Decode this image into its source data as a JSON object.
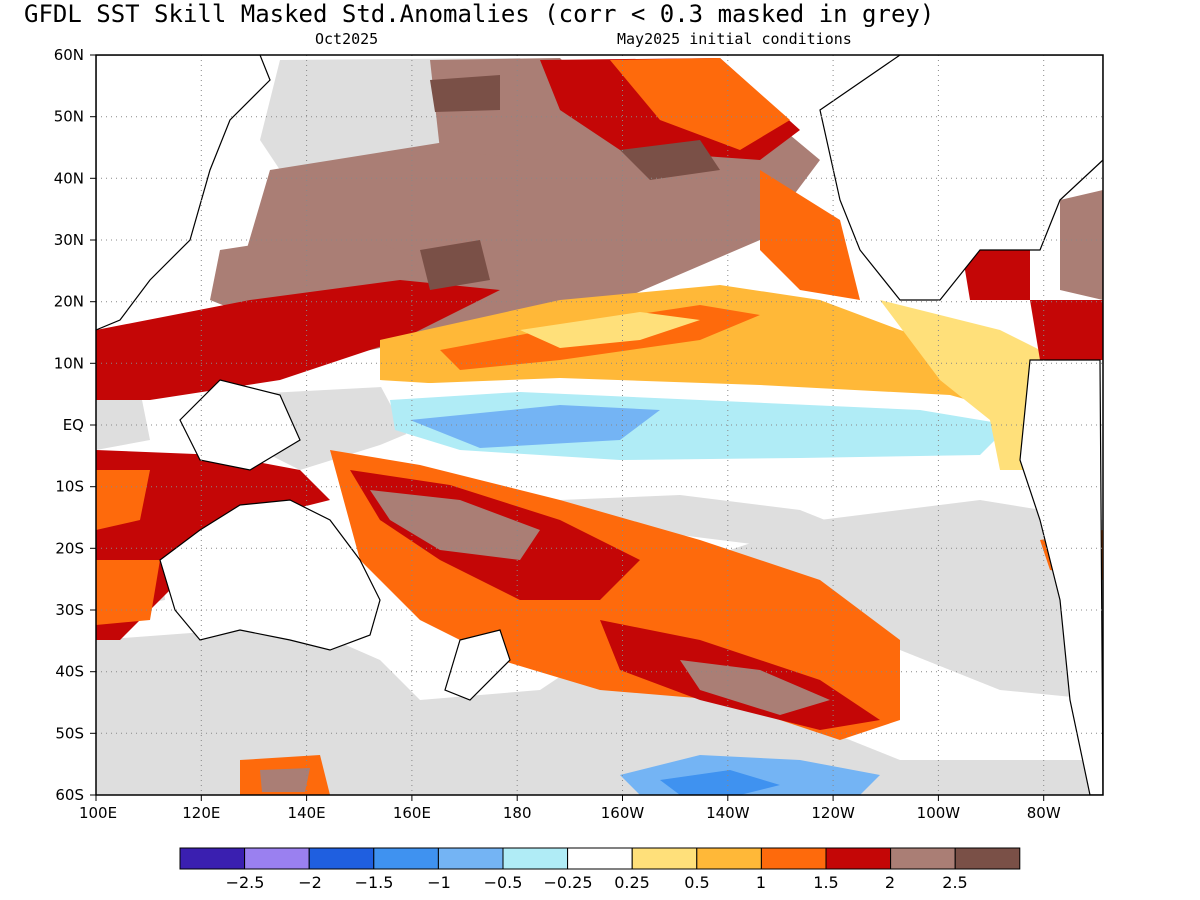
{
  "header": {
    "title": "GFDL   SST Skill Masked Std.Anomalies (corr < 0.3 masked in grey)",
    "valid_month": "Oct2025",
    "init_label": "May2025 initial conditions"
  },
  "axes": {
    "lat_labels": [
      "60N",
      "50N",
      "40N",
      "30N",
      "20N",
      "10N",
      "EQ",
      "10S",
      "20S",
      "30S",
      "40S",
      "50S",
      "60S"
    ],
    "lon_labels": [
      "100E",
      "120E",
      "140E",
      "160E",
      "180",
      "160W",
      "140W",
      "120W",
      "100W",
      "80W"
    ]
  },
  "colorbar": {
    "colors": [
      "#3a1fb0",
      "#9a80f0",
      "#1f5fe0",
      "#3f92f0",
      "#74b4f4",
      "#b0ecf6",
      "#ffffff",
      "#ffe07a",
      "#ffb838",
      "#fe6a0c",
      "#c40606",
      "#aa7e75",
      "#7a5047"
    ],
    "labels": [
      "−2.5",
      "−2",
      "−1.5",
      "−1",
      "−0.5",
      "−0.25",
      "0.25",
      "0.5",
      "1",
      "1.5",
      "2",
      "2.5"
    ]
  },
  "map_colors": {
    "mask_grey": "#dedede",
    "land": "#ffffff",
    "coast": "#000000"
  }
}
